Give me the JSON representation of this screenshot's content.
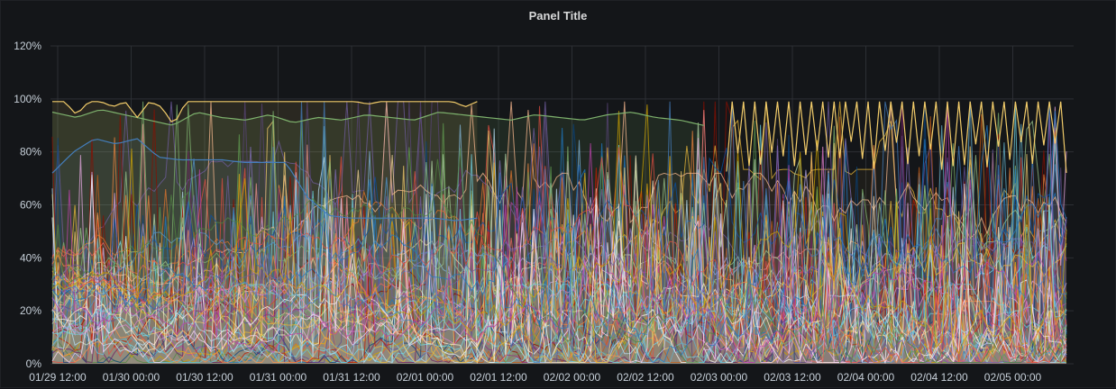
{
  "panel": {
    "title": "Panel Title"
  },
  "chart_data": {
    "type": "area",
    "title": "Panel Title",
    "xlabel": "",
    "ylabel": "",
    "ylim": [
      0,
      120
    ],
    "y_unit": "percent",
    "grid": true,
    "legend": "none",
    "y_ticks": [
      "0%",
      "20%",
      "40%",
      "60%",
      "80%",
      "100%",
      "120%"
    ],
    "x_ticks": [
      "01/29 12:00",
      "01/30 00:00",
      "01/30 12:00",
      "01/31 00:00",
      "01/31 12:00",
      "02/01 00:00",
      "02/01 12:00",
      "02/02 00:00",
      "02/02 12:00",
      "02/03 00:00",
      "02/03 12:00",
      "02/04 00:00",
      "02/04 12:00",
      "02/05 00:00"
    ],
    "series_count_approx": 60,
    "notable_series": [
      {
        "color": "#f2cc6a",
        "description_values_percent": [
          99,
          99,
          94,
          99,
          99,
          97,
          99,
          93,
          99,
          97,
          90,
          99,
          99,
          99,
          99,
          99,
          99,
          99,
          99,
          99,
          99,
          99,
          99,
          99,
          99,
          99,
          98,
          99,
          99,
          99,
          99,
          99,
          99,
          99,
          97,
          99
        ]
      },
      {
        "color": "#7eb26d",
        "description_values_percent": [
          95,
          93,
          96,
          94,
          92,
          90,
          95,
          93,
          92,
          94,
          91,
          93,
          92,
          94,
          93,
          92,
          95,
          94,
          93,
          92,
          94,
          93,
          92,
          94,
          95,
          93,
          92,
          90
        ]
      },
      {
        "color": "#447ebc",
        "description_values_percent": [
          72,
          80,
          85,
          83,
          85,
          78,
          77,
          77,
          77,
          76,
          76,
          76,
          63,
          56,
          55,
          55,
          55,
          55,
          55,
          54,
          55
        ]
      }
    ]
  }
}
